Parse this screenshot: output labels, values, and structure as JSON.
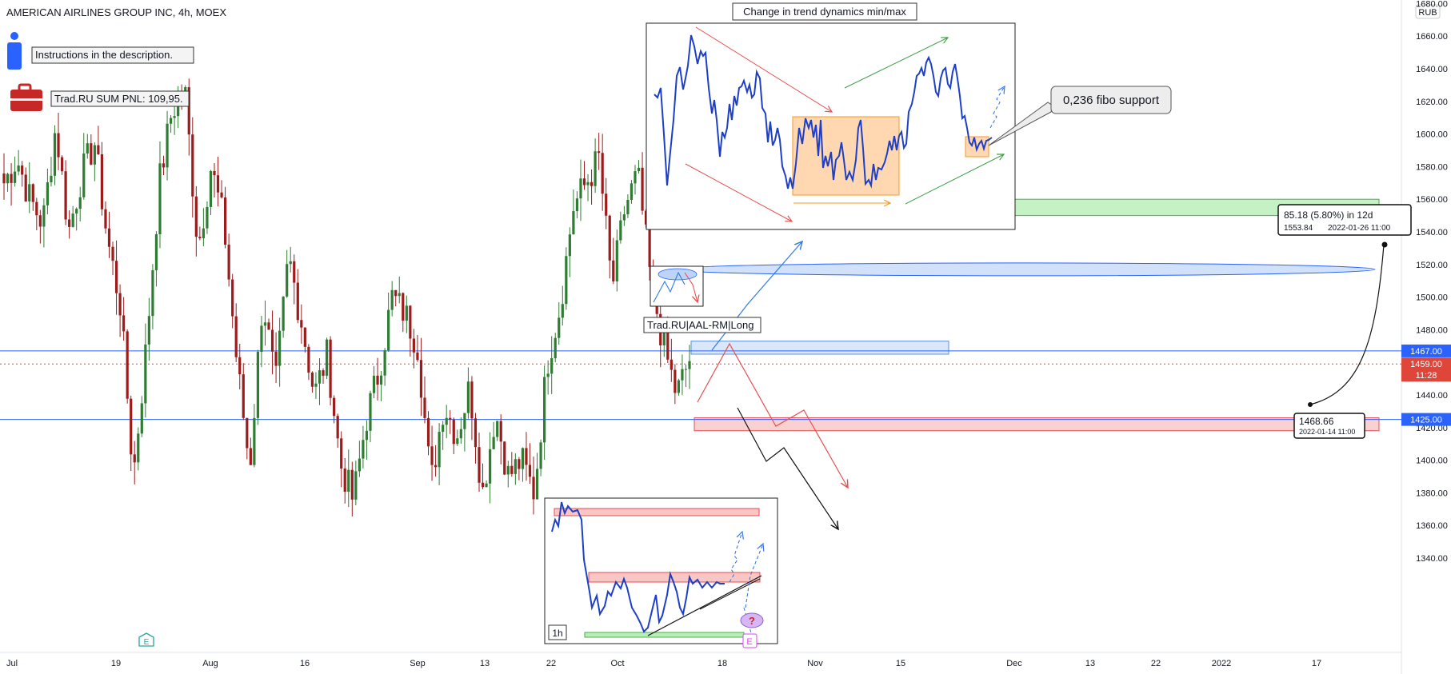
{
  "header": {
    "title": "AMERICAN AIRLINES GROUP INC, 4h, MOEX",
    "currency_badge": "RUB"
  },
  "notes": {
    "instructions": "Instructions in the description.",
    "pnl": "Trad.RU SUM PNL: 109,95.",
    "strategy_tag": "Trad.RU|AAL-RM|Long"
  },
  "colors": {
    "up_candle": "#2e7d32",
    "down_candle": "#9e1b1b",
    "level_line": "#2962ff",
    "last_price": "#e0453a",
    "target_zone": "#9be69b",
    "resistance_zone": "#f8b4b4",
    "entry_zone": "#bcd7f5",
    "accent_orange": "#ffc891"
  },
  "icons": {
    "info": "info-icon",
    "briefcase": "briefcase-icon",
    "earnings": "earnings-icon"
  },
  "chart_data": {
    "type": "candlestick",
    "title": "AMERICAN AIRLINES GROUP INC, 4h, MOEX",
    "ylim": [
      1330,
      1695
    ],
    "y_ticks": [
      "1340.00",
      "1360.00",
      "1380.00",
      "1400.00",
      "1420.00",
      "1440.00",
      "1460.00",
      "1480.00",
      "1500.00",
      "1520.00",
      "1540.00",
      "1560.00",
      "1580.00",
      "1600.00",
      "1620.00",
      "1640.00",
      "1660.00",
      "1680.00"
    ],
    "x_ticks": [
      "Jul",
      "19",
      "Aug",
      "16",
      "Sep",
      "13",
      "22",
      "Oct",
      "18",
      "Nov",
      "15",
      "Dec",
      "13",
      "22",
      "2022",
      "17"
    ],
    "anchor_closes": [
      1570,
      1585,
      1560,
      1545,
      1605,
      1540,
      1575,
      1595,
      1535,
      1495,
      1390,
      1470,
      1570,
      1615,
      1625,
      1530,
      1580,
      1545,
      1460,
      1395,
      1500,
      1445,
      1525,
      1485,
      1440,
      1465,
      1398,
      1375,
      1425,
      1455,
      1500,
      1490,
      1470,
      1385,
      1435,
      1415,
      1445,
      1380,
      1430,
      1390,
      1400,
      1380,
      1460,
      1495,
      1555,
      1570,
      1585,
      1505,
      1555,
      1575,
      1510,
      1470,
      1440,
      1462
    ],
    "levels": [
      {
        "price": 1467.0,
        "label": "1467.00"
      },
      {
        "price": 1425.0,
        "label": "1425.00"
      }
    ],
    "last_price": {
      "value": "1459.00",
      "countdown": "11:28"
    },
    "zones": [
      {
        "name": "target",
        "from": 1550,
        "to": 1560
      },
      {
        "name": "entry",
        "from": 1465,
        "to": 1473
      },
      {
        "name": "resistance",
        "from": 1421,
        "to": 1426
      },
      {
        "name": "ellipse",
        "center": 1517
      }
    ],
    "measure": {
      "start_price": "1468.66",
      "start_date": "2022-01-14 11:00",
      "change": "85.18 (5.80%) in 12d",
      "end_price": "1553.84",
      "end_date": "2022-01-26  11:00"
    }
  },
  "insets": {
    "top_title": "Change in trend dynamics min/max",
    "fibo_callout": "0,236 fibo support",
    "bottom_timeframe": "1h",
    "question_mark": "?",
    "earnings_letter": "E"
  }
}
